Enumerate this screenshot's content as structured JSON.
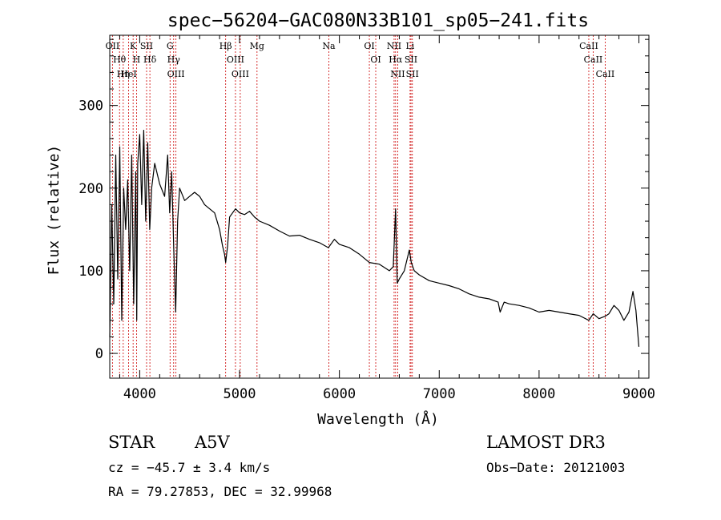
{
  "chart_data": {
    "type": "line",
    "title": "spec−56204−GAC080N33B101_sp05−241.fits",
    "xlabel": "Wavelength (Å)",
    "ylabel": "Flux (relative)",
    "xlim": [
      3700,
      9100
    ],
    "ylim": [
      -30,
      385
    ],
    "xticks": [
      4000,
      5000,
      6000,
      7000,
      8000,
      9000
    ],
    "yticks": [
      0,
      100,
      200,
      300
    ],
    "series": [
      {
        "name": "flux",
        "x": [
          3700,
          3720,
          3740,
          3760,
          3780,
          3800,
          3820,
          3840,
          3860,
          3880,
          3900,
          3920,
          3940,
          3960,
          3970,
          3980,
          4000,
          4020,
          4040,
          4060,
          4080,
          4100,
          4120,
          4150,
          4200,
          4250,
          4280,
          4300,
          4320,
          4340,
          4360,
          4380,
          4400,
          4450,
          4500,
          4550,
          4600,
          4650,
          4700,
          4750,
          4800,
          4830,
          4850,
          4861,
          4880,
          4900,
          4930,
          4960,
          5000,
          5050,
          5100,
          5150,
          5200,
          5300,
          5400,
          5500,
          5600,
          5700,
          5800,
          5890,
          5950,
          6000,
          6100,
          6200,
          6300,
          6400,
          6500,
          6540,
          6563,
          6580,
          6600,
          6650,
          6700,
          6720,
          6750,
          6800,
          6900,
          7000,
          7100,
          7200,
          7300,
          7400,
          7500,
          7590,
          7610,
          7650,
          7700,
          7800,
          7900,
          8000,
          8100,
          8200,
          8300,
          8400,
          8498,
          8542,
          8600,
          8662,
          8700,
          8750,
          8800,
          8850,
          8900,
          8940,
          8970,
          9000
        ],
        "values": [
          20,
          180,
          60,
          240,
          90,
          250,
          40,
          200,
          150,
          210,
          100,
          240,
          60,
          220,
          40,
          230,
          265,
          180,
          270,
          160,
          255,
          150,
          200,
          230,
          205,
          190,
          240,
          170,
          220,
          130,
          50,
          160,
          200,
          185,
          190,
          195,
          190,
          180,
          175,
          170,
          150,
          130,
          120,
          110,
          130,
          165,
          170,
          175,
          170,
          168,
          172,
          165,
          160,
          155,
          148,
          142,
          143,
          138,
          134,
          128,
          138,
          132,
          128,
          120,
          110,
          108,
          100,
          105,
          175,
          85,
          90,
          100,
          125,
          110,
          100,
          95,
          88,
          85,
          82,
          78,
          72,
          68,
          66,
          62,
          50,
          62,
          60,
          58,
          55,
          50,
          52,
          50,
          48,
          46,
          40,
          48,
          42,
          45,
          48,
          58,
          52,
          40,
          50,
          75,
          52,
          8
        ]
      }
    ],
    "line_ids": [
      {
        "label": "OII",
        "wavelength": 3727
      },
      {
        "label": "Hθ",
        "wavelength": 3798
      },
      {
        "label": "Hη",
        "wavelength": 3835
      },
      {
        "label": "K",
        "wavelength": 3934
      },
      {
        "label": "HeI",
        "wavelength": 3889
      },
      {
        "label": "H",
        "wavelength": 3968
      },
      {
        "label": "SII",
        "wavelength": 4069
      },
      {
        "label": "Hδ",
        "wavelength": 4102
      },
      {
        "label": "G",
        "wavelength": 4304
      },
      {
        "label": "Hγ",
        "wavelength": 4340
      },
      {
        "label": "OIII",
        "wavelength": 4363
      },
      {
        "label": "Hβ",
        "wavelength": 4861
      },
      {
        "label": "OIII",
        "wavelength": 4959
      },
      {
        "label": "OIII",
        "wavelength": 5007
      },
      {
        "label": "Mg",
        "wavelength": 5175
      },
      {
        "label": "Na",
        "wavelength": 5894
      },
      {
        "label": "OI",
        "wavelength": 6300
      },
      {
        "label": "OI",
        "wavelength": 6364
      },
      {
        "label": "NII",
        "wavelength": 6548
      },
      {
        "label": "Hα",
        "wavelength": 6563
      },
      {
        "label": "NII",
        "wavelength": 6584
      },
      {
        "label": "SII",
        "wavelength": 6717
      },
      {
        "label": "Li",
        "wavelength": 6708
      },
      {
        "label": "SII",
        "wavelength": 6731
      },
      {
        "label": "CaII",
        "wavelength": 8498
      },
      {
        "label": "CaII",
        "wavelength": 8542
      },
      {
        "label": "CaII",
        "wavelength": 8662
      }
    ],
    "line_color": "#000000",
    "marker_color": "#cc0000"
  },
  "info": {
    "class": "STAR",
    "subclass": "A5V",
    "survey": "LAMOST DR3",
    "redshift": "cz = −45.7 ± 3.4 km/s",
    "obs_date": "Obs−Date: 20121003",
    "coords": "RA =  79.27853, DEC =  32.99968"
  }
}
